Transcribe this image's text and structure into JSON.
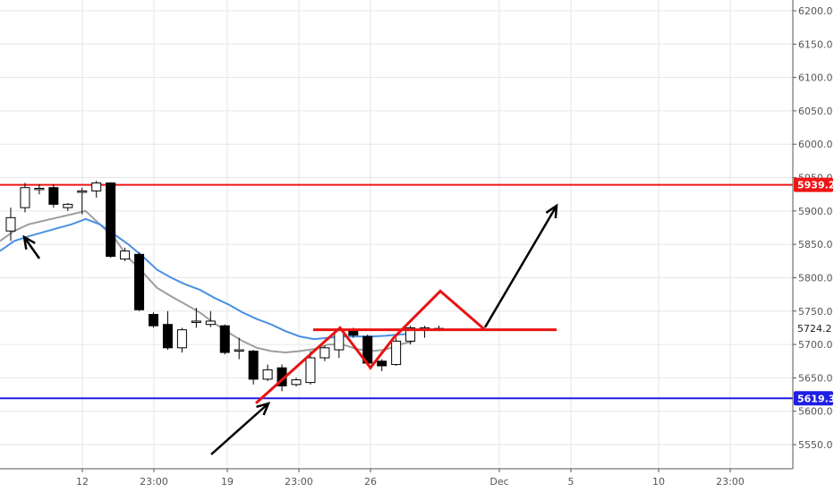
{
  "chart_data": {
    "type": "candlestick",
    "x_tick_labels": [
      "12",
      "23:00",
      "19",
      "23:00",
      "26",
      "Dec",
      "5",
      "10",
      "23:00"
    ],
    "y_tick_labels": [
      5550,
      5600,
      5650,
      5700,
      5750,
      5800,
      5850,
      5900,
      5950,
      6000,
      6050,
      6100,
      6150,
      6200
    ],
    "ylim": [
      5520,
      6215
    ],
    "grid": true,
    "price_labels": {
      "resistance": "5939.2",
      "last": "5724.2",
      "support": "5619.3"
    },
    "horizontal_levels": {
      "resistance": 5939.2,
      "support": 5619.3,
      "neckline": 5722
    },
    "candles": [
      {
        "o": 5870,
        "h": 5905,
        "l": 5855,
        "c": 5890
      },
      {
        "o": 5905,
        "h": 5942,
        "l": 5898,
        "c": 5935
      },
      {
        "o": 5932,
        "h": 5940,
        "l": 5925,
        "c": 5934
      },
      {
        "o": 5935,
        "h": 5940,
        "l": 5905,
        "c": 5910
      },
      {
        "o": 5905,
        "h": 5912,
        "l": 5900,
        "c": 5910
      },
      {
        "o": 5928,
        "h": 5935,
        "l": 5895,
        "c": 5930
      },
      {
        "o": 5930,
        "h": 5945,
        "l": 5920,
        "c": 5942
      },
      {
        "o": 5942,
        "h": 5942,
        "l": 5830,
        "c": 5832
      },
      {
        "o": 5828,
        "h": 5845,
        "l": 5825,
        "c": 5840
      },
      {
        "o": 5835,
        "h": 5838,
        "l": 5750,
        "c": 5752
      },
      {
        "o": 5745,
        "h": 5748,
        "l": 5725,
        "c": 5728
      },
      {
        "o": 5730,
        "h": 5750,
        "l": 5692,
        "c": 5695
      },
      {
        "o": 5695,
        "h": 5725,
        "l": 5688,
        "c": 5722
      },
      {
        "o": 5735,
        "h": 5755,
        "l": 5725,
        "c": 5735
      },
      {
        "o": 5730,
        "h": 5750,
        "l": 5726,
        "c": 5735
      },
      {
        "o": 5728,
        "h": 5730,
        "l": 5685,
        "c": 5688
      },
      {
        "o": 5690,
        "h": 5710,
        "l": 5678,
        "c": 5692
      },
      {
        "o": 5690,
        "h": 5692,
        "l": 5640,
        "c": 5648
      },
      {
        "o": 5648,
        "h": 5670,
        "l": 5645,
        "c": 5662
      },
      {
        "o": 5665,
        "h": 5670,
        "l": 5630,
        "c": 5638
      },
      {
        "o": 5640,
        "h": 5650,
        "l": 5637,
        "c": 5647
      },
      {
        "o": 5643,
        "h": 5690,
        "l": 5640,
        "c": 5680
      },
      {
        "o": 5680,
        "h": 5698,
        "l": 5675,
        "c": 5695
      },
      {
        "o": 5692,
        "h": 5725,
        "l": 5680,
        "c": 5722
      },
      {
        "o": 5722,
        "h": 5725,
        "l": 5710,
        "c": 5714
      },
      {
        "o": 5712,
        "h": 5715,
        "l": 5670,
        "c": 5672
      },
      {
        "o": 5675,
        "h": 5678,
        "l": 5660,
        "c": 5668
      },
      {
        "o": 5670,
        "h": 5710,
        "l": 5668,
        "c": 5705
      },
      {
        "o": 5705,
        "h": 5728,
        "l": 5700,
        "c": 5725
      },
      {
        "o": 5722,
        "h": 5728,
        "l": 5710,
        "c": 5725
      },
      {
        "o": 5724,
        "h": 5728,
        "l": 5720,
        "c": 5724
      }
    ],
    "ema_blue": [
      5840,
      5855,
      5862,
      5868,
      5874,
      5880,
      5888,
      5880,
      5865,
      5850,
      5832,
      5812,
      5800,
      5790,
      5782,
      5770,
      5760,
      5748,
      5738,
      5730,
      5720,
      5712,
      5708,
      5710,
      5712,
      5712,
      5712,
      5713,
      5715,
      5716
    ],
    "ema_gray": [
      5855,
      5870,
      5880,
      5885,
      5890,
      5895,
      5900,
      5880,
      5860,
      5830,
      5808,
      5785,
      5772,
      5760,
      5748,
      5732,
      5718,
      5705,
      5695,
      5690,
      5688,
      5690,
      5693,
      5700,
      5700,
      5693,
      5690,
      5692,
      5700,
      5705
    ],
    "drawing_zigzag": [
      [
        0,
        5612
      ],
      [
        0,
        5725
      ],
      [
        0,
        5665
      ],
      [
        0,
        5710
      ],
      [
        0,
        5780
      ],
      [
        0,
        5722
      ]
    ]
  },
  "colors": {
    "resistance": "#f01414",
    "support": "#1e1ee6",
    "ema_blue": "#4a90e2",
    "ema_gray": "#9e9e9e",
    "candle_down": "#000000",
    "candle_up": "#ffffff",
    "grid": "#e6e6e6",
    "zigzag": "#e81313",
    "arrows": "#000000"
  }
}
